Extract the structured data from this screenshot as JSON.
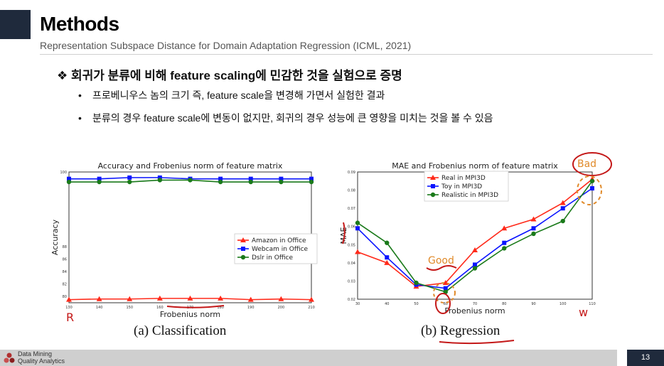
{
  "slide": {
    "title": "Methods",
    "subtitle": "Representation Subspace Distance for Domain Adaptation Regression (ICML, 2021)",
    "bullet_main": "❖ 회귀가 분류에 비해 feature scaling에 민감한 것을 실험으로 증명",
    "sub_bullets": [
      "프로베니우스 놈의 크기 즉, feature scale을 변경해 가면서 실험한 결과",
      "분류의 경우 feature scale에 변동이 없지만, 회귀의 경우 성능에 큰 영향을 미치는 것을 볼 수 있음"
    ],
    "page_number": "13",
    "footer_logo_line1": "Data Mining",
    "footer_logo_line2": "Quality Analytics",
    "accent_color": "#1f2a3c"
  },
  "captions": {
    "left": "(a) Classification",
    "right": "(b) Regression"
  },
  "annotations": {
    "good": "Good",
    "bad": "Bad",
    "left_mark": "R",
    "right_mark": "w"
  },
  "chart_data": [
    {
      "type": "line",
      "title": "Accuracy and Frobenius norm of feature matrix",
      "xlabel": "Frobenius norm",
      "ylabel": "Accuracy",
      "x": [
        130,
        140,
        150,
        160,
        170,
        180,
        190,
        200,
        210
      ],
      "y_ticks": [
        "80",
        "82",
        "84",
        "86",
        "88",
        "100"
      ],
      "ylim": [
        79,
        100
      ],
      "legend_position": "center-right",
      "series": [
        {
          "name": "Amazon in Office",
          "color": "#ff2a1a",
          "marker": "triangle",
          "values": [
            79.5,
            79.6,
            79.6,
            79.7,
            79.7,
            79.7,
            79.5,
            79.6,
            79.5
          ]
        },
        {
          "name": "Webcam in Office",
          "color": "#0a14ff",
          "marker": "square",
          "values": [
            98.9,
            98.9,
            99.1,
            99.1,
            98.9,
            98.9,
            98.9,
            98.9,
            98.9
          ]
        },
        {
          "name": "Dslr in Office",
          "color": "#1a7a1a",
          "marker": "circle",
          "values": [
            98.4,
            98.4,
            98.4,
            98.7,
            98.7,
            98.4,
            98.4,
            98.4,
            98.4
          ]
        }
      ]
    },
    {
      "type": "line",
      "title": "MAE and Frobenius norm of feature matrix",
      "xlabel": "Frobenius norm",
      "ylabel": "MAE",
      "x": [
        30,
        40,
        50,
        60,
        70,
        80,
        90,
        100,
        110
      ],
      "y_ticks": [
        "0.02",
        "0.03",
        "0.04",
        "0.05",
        "0.06",
        "0.07",
        "0.08",
        "0.09"
      ],
      "ylim": [
        0.02,
        0.09
      ],
      "legend_position": "top-left",
      "series": [
        {
          "name": "Real in MPI3D",
          "color": "#ff2a1a",
          "marker": "triangle",
          "values": [
            0.046,
            0.04,
            0.027,
            0.029,
            0.047,
            0.059,
            0.064,
            0.073,
            0.086
          ]
        },
        {
          "name": "Toy in MPI3D",
          "color": "#0a14ff",
          "marker": "square",
          "values": [
            0.059,
            0.043,
            0.028,
            0.026,
            0.039,
            0.051,
            0.059,
            0.07,
            0.081
          ]
        },
        {
          "name": "Realistic in MPI3D",
          "color": "#1a7a1a",
          "marker": "circle",
          "values": [
            0.062,
            0.051,
            0.029,
            0.024,
            0.037,
            0.048,
            0.056,
            0.063,
            0.085
          ]
        }
      ]
    }
  ]
}
